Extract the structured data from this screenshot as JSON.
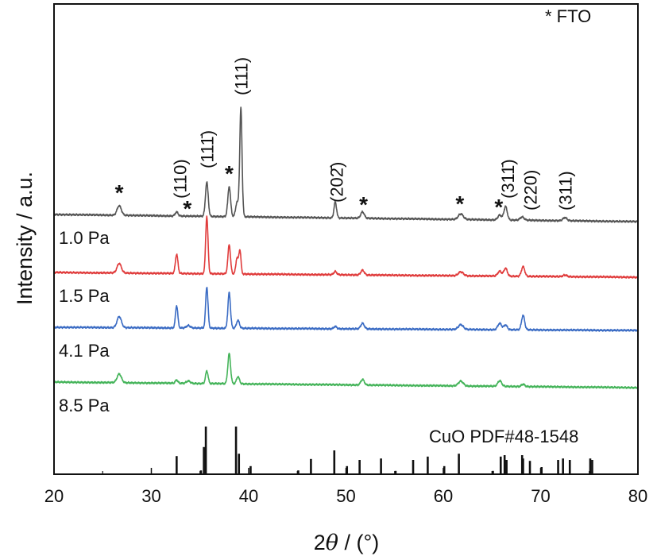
{
  "chart_data": {
    "type": "line",
    "title": "",
    "xlabel_prefix": "2",
    "xlabel_theta": "θ",
    "xlabel_suffix": " / (°)",
    "ylabel": "Intensity / a.u.",
    "xlim": [
      20,
      80
    ],
    "ylim": [
      0,
      592
    ],
    "xticks": [
      20,
      30,
      40,
      50,
      60,
      70,
      80
    ],
    "xtick_labels": [
      "20",
      "30",
      "40",
      "50",
      "60",
      "70",
      "80"
    ],
    "grid": false,
    "legend_text": "* FTO",
    "legend_placement": "top-right",
    "series": [
      {
        "name": "1.0 Pa",
        "color": "#555555",
        "baseline": [
          327,
          318
        ],
        "peaks": [
          [
            26.7,
            12,
            0.22
          ],
          [
            32.6,
            5,
            0.15
          ],
          [
            35.7,
            43,
            0.14
          ],
          [
            38.0,
            38,
            0.14
          ],
          [
            38.8,
            18,
            0.14
          ],
          [
            39.2,
            137,
            0.12
          ],
          [
            48.9,
            20,
            0.13
          ],
          [
            51.7,
            8,
            0.18
          ],
          [
            61.8,
            7,
            0.25
          ],
          [
            65.8,
            6,
            0.2
          ],
          [
            66.4,
            17,
            0.17
          ],
          [
            68.1,
            4,
            0.2
          ],
          [
            72.5,
            4,
            0.2
          ]
        ]
      },
      {
        "name": "1.5 Pa",
        "color": "#e03c3c",
        "baseline": [
          254,
          248
        ],
        "peaks": [
          [
            26.7,
            12,
            0.22
          ],
          [
            32.6,
            24,
            0.13
          ],
          [
            35.7,
            72,
            0.12
          ],
          [
            38.0,
            37,
            0.13
          ],
          [
            38.8,
            20,
            0.12
          ],
          [
            39.1,
            30,
            0.11
          ],
          [
            48.9,
            4,
            0.15
          ],
          [
            51.7,
            6,
            0.18
          ],
          [
            61.8,
            5,
            0.25
          ],
          [
            65.8,
            6,
            0.2
          ],
          [
            66.4,
            10,
            0.17
          ],
          [
            68.2,
            12,
            0.17
          ],
          [
            72.5,
            2,
            0.2
          ]
        ]
      },
      {
        "name": "4.1 Pa",
        "color": "#3b6cc4",
        "baseline": [
          185,
          181
        ],
        "peaks": [
          [
            26.7,
            14,
            0.22
          ],
          [
            32.6,
            28,
            0.12
          ],
          [
            33.8,
            3,
            0.2
          ],
          [
            35.7,
            52,
            0.12
          ],
          [
            38.0,
            45,
            0.13
          ],
          [
            38.9,
            10,
            0.15
          ],
          [
            48.9,
            3,
            0.15
          ],
          [
            51.7,
            7,
            0.18
          ],
          [
            61.8,
            6,
            0.25
          ],
          [
            65.8,
            8,
            0.2
          ],
          [
            66.4,
            6,
            0.17
          ],
          [
            68.2,
            18,
            0.16
          ]
        ]
      },
      {
        "name": "8.5 Pa",
        "color": "#45b45a",
        "baseline": [
          116,
          109
        ],
        "peaks": [
          [
            26.7,
            11,
            0.22
          ],
          [
            32.6,
            4,
            0.13
          ],
          [
            33.8,
            3,
            0.2
          ],
          [
            35.7,
            16,
            0.13
          ],
          [
            38.0,
            38,
            0.14
          ],
          [
            38.9,
            9,
            0.15
          ],
          [
            51.7,
            7,
            0.18
          ],
          [
            61.8,
            6,
            0.25
          ],
          [
            65.8,
            7,
            0.2
          ],
          [
            68.2,
            3,
            0.17
          ]
        ]
      }
    ],
    "reference": {
      "name": "CuO PDF#48-1548",
      "max_height": 60,
      "lines": [
        [
          32.6,
          38
        ],
        [
          35.1,
          8
        ],
        [
          35.4,
          57
        ],
        [
          35.6,
          100
        ],
        [
          38.7,
          100
        ],
        [
          39.0,
          43
        ],
        [
          40.2,
          17
        ],
        [
          45.1,
          8
        ],
        [
          46.4,
          32
        ],
        [
          48.8,
          50
        ],
        [
          50.1,
          17
        ],
        [
          51.4,
          30
        ],
        [
          53.6,
          33
        ],
        [
          55.1,
          7
        ],
        [
          56.9,
          30
        ],
        [
          58.4,
          37
        ],
        [
          60.1,
          17
        ],
        [
          61.6,
          43
        ],
        [
          65.1,
          7
        ],
        [
          65.9,
          37
        ],
        [
          66.3,
          40
        ],
        [
          66.5,
          30
        ],
        [
          68.1,
          40
        ],
        [
          68.2,
          33
        ],
        [
          68.9,
          28
        ],
        [
          70.1,
          15
        ],
        [
          71.8,
          30
        ],
        [
          72.3,
          33
        ],
        [
          73.0,
          30
        ],
        [
          75.1,
          33
        ],
        [
          75.3,
          30
        ]
      ]
    },
    "annotations": {
      "hkl": [
        {
          "text": "(110)",
          "x": 33.0
        },
        {
          "text": "(111̄)",
          "x": 35.8
        },
        {
          "text": "(111)",
          "x": 39.3
        },
        {
          "text": "(202̄)",
          "x": 49.1
        },
        {
          "text": "(311̄)",
          "x": 66.7
        },
        {
          "text": "(220)",
          "x": 69.0
        },
        {
          "text": "(311)",
          "x": 72.6
        }
      ],
      "fto_marks": [
        {
          "text": "*",
          "x": 26.7
        },
        {
          "text": "*",
          "x": 33.7
        },
        {
          "text": "*",
          "x": 38.0
        },
        {
          "text": "*",
          "x": 51.8
        },
        {
          "text": "*",
          "x": 61.7
        },
        {
          "text": "*",
          "x": 65.7
        }
      ]
    }
  }
}
